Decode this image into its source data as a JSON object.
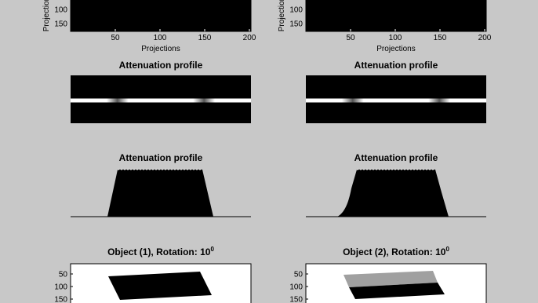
{
  "columns": [
    {
      "projections_plot": {
        "ylabel": "Projection",
        "yticks": [
          100,
          150
        ],
        "xticks": [
          50,
          100,
          150,
          200
        ],
        "xlabel": "Projections"
      },
      "profile_image": {
        "title": "Attenuation profile"
      },
      "profile_plot": {
        "title": "Attenuation profile"
      },
      "object_plot": {
        "title": "Object (1), Rotation: 10",
        "title_sup": "0",
        "yticks": [
          50,
          100,
          150
        ]
      }
    },
    {
      "projections_plot": {
        "ylabel": "Projection",
        "yticks": [
          100,
          150
        ],
        "xticks": [
          50,
          100,
          150,
          200
        ],
        "xlabel": "Projections"
      },
      "profile_image": {
        "title": "Attenuation profile"
      },
      "profile_plot": {
        "title": "Attenuation profile"
      },
      "object_plot": {
        "title": "Object (2), Rotation: 10",
        "title_sup": "0",
        "yticks": [
          50,
          100,
          150
        ]
      }
    }
  ]
}
